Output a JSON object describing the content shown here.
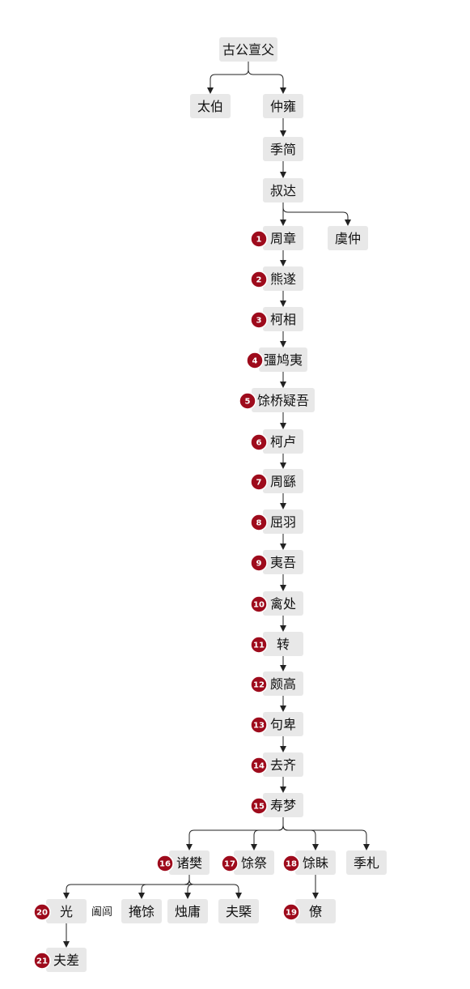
{
  "colors": {
    "node_fill": "#e8e8e8",
    "badge_fill": "#9e0b1c",
    "badge_ring": "#ffffff",
    "line": "#222222"
  },
  "nodes": [
    {
      "id": "gugong",
      "label": "古公亶父"
    },
    {
      "id": "taibo",
      "label": "太伯"
    },
    {
      "id": "zhongyong",
      "label": "仲雍"
    },
    {
      "id": "jijian",
      "label": "季简"
    },
    {
      "id": "shuda",
      "label": "叔达"
    },
    {
      "id": "zhouzhang",
      "label": "周章",
      "badge": "1"
    },
    {
      "id": "yuzhong",
      "label": "虞仲"
    },
    {
      "id": "xiongsui",
      "label": "熊遂",
      "badge": "2"
    },
    {
      "id": "kexiang",
      "label": "柯相",
      "badge": "3"
    },
    {
      "id": "jiangjiuyi",
      "label": "彊鸠夷",
      "badge": "4"
    },
    {
      "id": "yuqiaoyiwu",
      "label": "馀桥疑吾",
      "badge": "5"
    },
    {
      "id": "kelu",
      "label": "柯卢",
      "badge": "6"
    },
    {
      "id": "zhouyao",
      "label": "周繇",
      "badge": "7"
    },
    {
      "id": "quyu",
      "label": "屈羽",
      "badge": "8"
    },
    {
      "id": "yiwu",
      "label": "夷吾",
      "badge": "9"
    },
    {
      "id": "qinchu",
      "label": "禽处",
      "badge": "10"
    },
    {
      "id": "zhuan",
      "label": "转",
      "badge": "11"
    },
    {
      "id": "pogao",
      "label": "颇高",
      "badge": "12"
    },
    {
      "id": "goubei",
      "label": "句卑",
      "badge": "13"
    },
    {
      "id": "quqi",
      "label": "去齐",
      "badge": "14"
    },
    {
      "id": "shoumeng",
      "label": "寿梦",
      "badge": "15"
    },
    {
      "id": "zhufan",
      "label": "诸樊",
      "badge": "16"
    },
    {
      "id": "yuji",
      "label": "馀祭",
      "badge": "17"
    },
    {
      "id": "yumei",
      "label": "馀眛",
      "badge": "18"
    },
    {
      "id": "jizha",
      "label": "季札"
    },
    {
      "id": "guang",
      "label": "光",
      "badge": "20"
    },
    {
      "id": "yanyu",
      "label": "掩馀"
    },
    {
      "id": "zhuyong",
      "label": "烛庸"
    },
    {
      "id": "fugai",
      "label": "夫槩"
    },
    {
      "id": "liao",
      "label": "僚",
      "badge": "19"
    },
    {
      "id": "fuchai",
      "label": "夫差",
      "badge": "21"
    }
  ],
  "notes": [
    {
      "id": "helu",
      "label": "阖闾"
    }
  ],
  "edges": [
    [
      "gugong",
      "taibo"
    ],
    [
      "gugong",
      "zhongyong"
    ],
    [
      "zhongyong",
      "jijian"
    ],
    [
      "jijian",
      "shuda"
    ],
    [
      "shuda",
      "zhouzhang"
    ],
    [
      "shuda",
      "yuzhong"
    ],
    [
      "zhouzhang",
      "xiongsui"
    ],
    [
      "xiongsui",
      "kexiang"
    ],
    [
      "kexiang",
      "jiangjiuyi"
    ],
    [
      "jiangjiuyi",
      "yuqiaoyiwu"
    ],
    [
      "yuqiaoyiwu",
      "kelu"
    ],
    [
      "kelu",
      "zhouyao"
    ],
    [
      "zhouyao",
      "quyu"
    ],
    [
      "quyu",
      "yiwu"
    ],
    [
      "yiwu",
      "qinchu"
    ],
    [
      "qinchu",
      "zhuan"
    ],
    [
      "zhuan",
      "pogao"
    ],
    [
      "pogao",
      "goubei"
    ],
    [
      "goubei",
      "quqi"
    ],
    [
      "quqi",
      "shoumeng"
    ],
    [
      "shoumeng",
      "zhufan"
    ],
    [
      "shoumeng",
      "yuji"
    ],
    [
      "shoumeng",
      "yumei"
    ],
    [
      "shoumeng",
      "jizha"
    ],
    [
      "zhufan",
      "guang"
    ],
    [
      "zhufan",
      "yanyu"
    ],
    [
      "zhufan",
      "zhuyong"
    ],
    [
      "zhufan",
      "fugai"
    ],
    [
      "yumei",
      "liao"
    ],
    [
      "guang",
      "fuchai"
    ]
  ]
}
